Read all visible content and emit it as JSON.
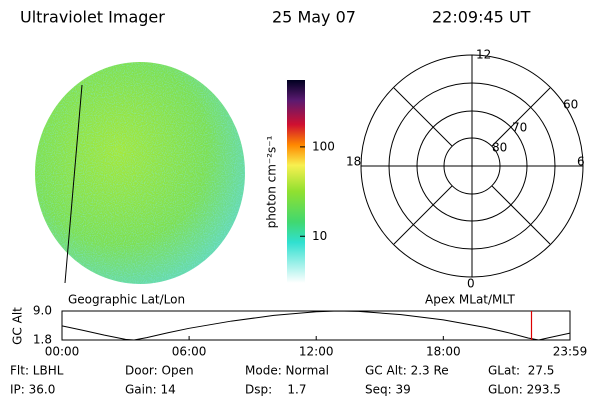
{
  "header": {
    "instrument": "Ultraviolet Imager",
    "date": "25 May 07",
    "time": "22:09:45 UT"
  },
  "image_panel": {
    "label": "Geographic Lat/Lon"
  },
  "colorbar": {
    "label": "photon cm⁻²s⁻¹",
    "ticks": [
      10,
      100
    ],
    "range": [
      3,
      560
    ],
    "log": true
  },
  "polar_panel": {
    "label": "Apex MLat/MLT",
    "mlt_labels": [
      "12",
      "18",
      "6",
      "0"
    ],
    "lat_labels": [
      "60",
      "70",
      "80"
    ]
  },
  "chart_data": {
    "type": "line",
    "ylabel": "GC Alt",
    "x": [
      0,
      1,
      2,
      3,
      3.4,
      4,
      5,
      6,
      8,
      10,
      12,
      13,
      14,
      16,
      18,
      20,
      21,
      22,
      22.5,
      23,
      23.98
    ],
    "values": [
      5.3,
      4.2,
      3.0,
      1.95,
      1.8,
      2.4,
      3.6,
      4.7,
      6.5,
      7.9,
      8.8,
      9.0,
      8.9,
      8.1,
      6.8,
      4.9,
      3.7,
      2.3,
      1.8,
      2.4,
      3.5
    ],
    "color": "#000000",
    "xlim": [
      0,
      23.98
    ],
    "xticks": [
      {
        "value": 0,
        "label": "00:00"
      },
      {
        "value": 6,
        "label": "06:00"
      },
      {
        "value": 12,
        "label": "12:00"
      },
      {
        "value": 18,
        "label": "18:00"
      },
      {
        "value": 23.98,
        "label": "23:59"
      }
    ],
    "ylim": [
      1.8,
      9.0
    ],
    "yticks": [
      1.8,
      {
        "value": 9.0,
        "label": "9.0"
      }
    ],
    "current_time": 22.1625,
    "current_color": "#dd0000"
  },
  "info": {
    "rows": [
      [
        "Flt: LBHL",
        "Door: Open",
        "Mode: Normal",
        "GC Alt: 2.3 Re",
        "GLat:  27.5"
      ],
      [
        "IP: 36.0",
        "Gain: 14",
        "Dsp:    1.7",
        "Seq: 39",
        "GLon: 293.5"
      ]
    ]
  }
}
